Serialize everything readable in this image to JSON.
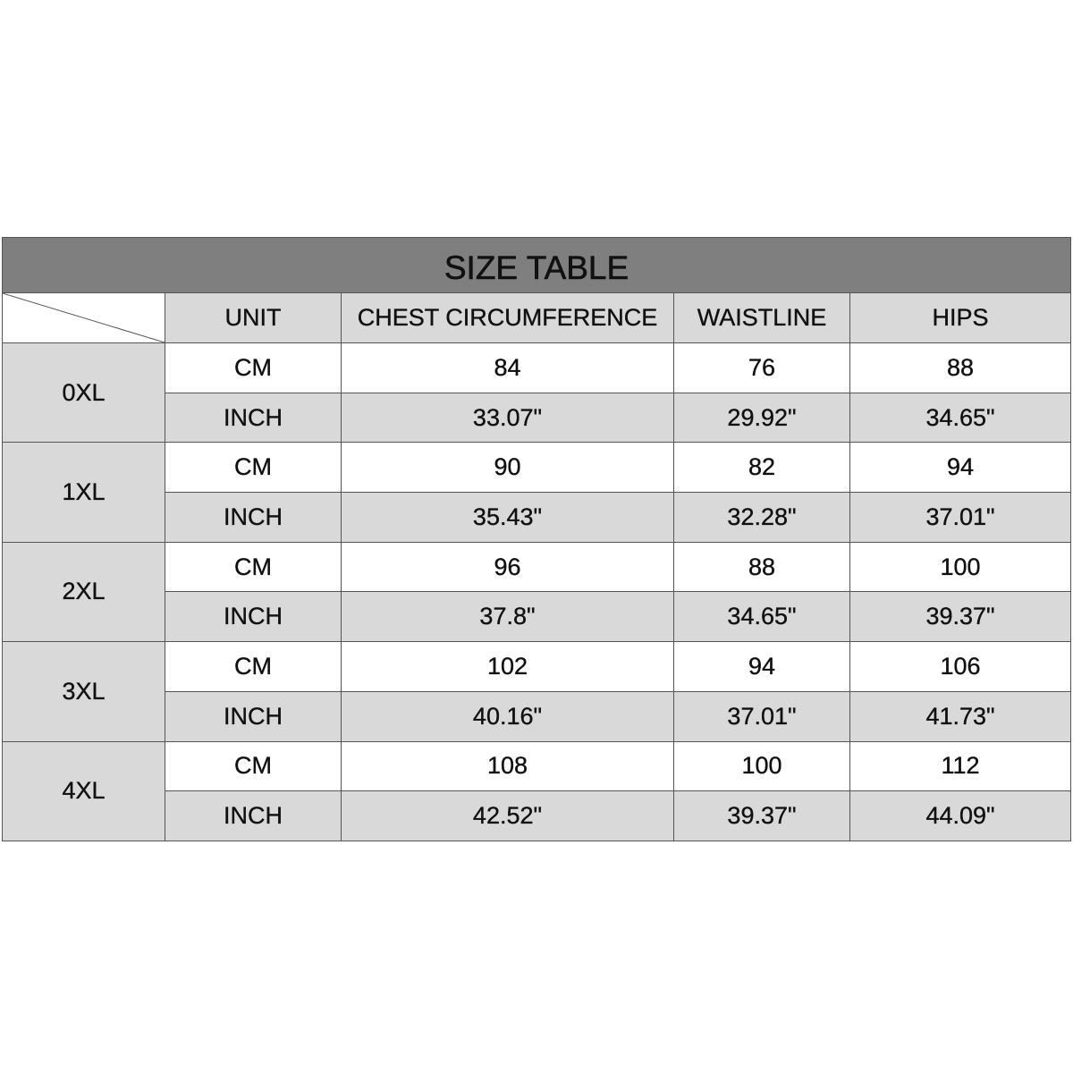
{
  "title": "SIZE TABLE",
  "headers": [
    "UNIT",
    "CHEST CIRCUMFERENCE",
    "WAISTLINE",
    "HIPS"
  ],
  "colors": {
    "title_bar": "#7f7f7f",
    "shaded_cell": "#d9d9d9",
    "white_cell": "#ffffff"
  },
  "sizes": [
    {
      "size": "0XL",
      "rows": [
        {
          "unit": "CM",
          "chest": "84",
          "waist": "76",
          "hips": "88"
        },
        {
          "unit": "INCH",
          "chest": "33.07\"",
          "waist": "29.92\"",
          "hips": "34.65\""
        }
      ]
    },
    {
      "size": "1XL",
      "rows": [
        {
          "unit": "CM",
          "chest": "90",
          "waist": "82",
          "hips": "94"
        },
        {
          "unit": "INCH",
          "chest": "35.43\"",
          "waist": "32.28\"",
          "hips": "37.01\""
        }
      ]
    },
    {
      "size": "2XL",
      "rows": [
        {
          "unit": "CM",
          "chest": "96",
          "waist": "88",
          "hips": "100"
        },
        {
          "unit": "INCH",
          "chest": "37.8\"",
          "waist": "34.65\"",
          "hips": "39.37\""
        }
      ]
    },
    {
      "size": "3XL",
      "rows": [
        {
          "unit": "CM",
          "chest": "102",
          "waist": "94",
          "hips": "106"
        },
        {
          "unit": "INCH",
          "chest": "40.16\"",
          "waist": "37.01\"",
          "hips": "41.73\""
        }
      ]
    },
    {
      "size": "4XL",
      "rows": [
        {
          "unit": "CM",
          "chest": "108",
          "waist": "100",
          "hips": "112"
        },
        {
          "unit": "INCH",
          "chest": "42.52\"",
          "waist": "39.37\"",
          "hips": "44.09\""
        }
      ]
    }
  ]
}
